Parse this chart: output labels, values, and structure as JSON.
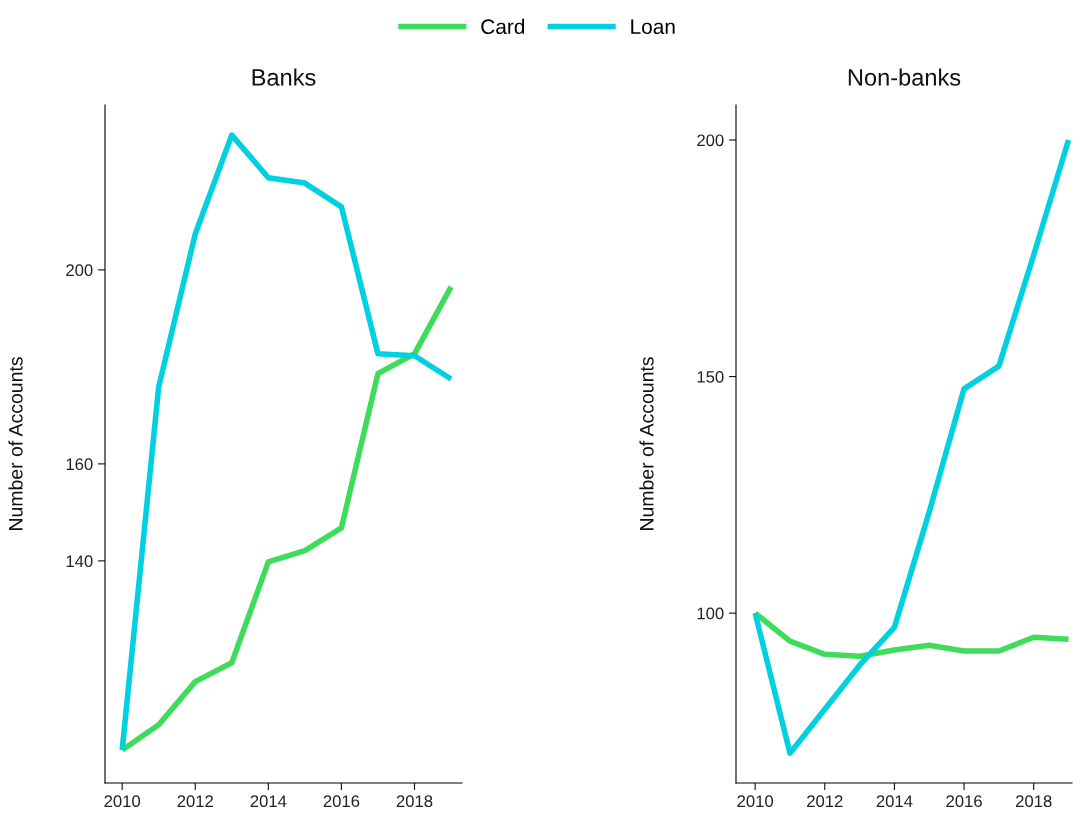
{
  "chart_data": [
    {
      "type": "line",
      "title": "Banks",
      "ylabel": "Number of Accounts",
      "legend": "top",
      "grid": false,
      "line_style": "solid",
      "marker": "none",
      "x": [
        2010,
        2011,
        2012,
        2013,
        2014,
        2015,
        2016,
        2017,
        2018,
        2019
      ],
      "xlim": [
        2009.53,
        2019.3
      ],
      "xticks": [
        2010,
        2012,
        2014,
        2016,
        2018
      ],
      "ylim": [
        94.2,
        234
      ],
      "yticks": [
        140,
        160,
        200
      ],
      "series": [
        {
          "name": "Card",
          "color": "#3ddc5a",
          "values": [
            101.0,
            106.2,
            115.1,
            119.0,
            139.8,
            142.1,
            146.8,
            178.6,
            182.7,
            196.5
          ]
        },
        {
          "name": "Loan",
          "color": "#00d0e0",
          "values": [
            101.0,
            175.9,
            207.4,
            227.8,
            219.0,
            217.9,
            213.0,
            182.7,
            182.3,
            177.5
          ]
        }
      ]
    },
    {
      "type": "line",
      "title": "Non-banks",
      "ylabel": "Number of Accounts",
      "legend": "top",
      "grid": false,
      "line_style": "solid",
      "marker": "none",
      "x": [
        2010,
        2011,
        2012,
        2013,
        2014,
        2015,
        2016,
        2017,
        2018,
        2019
      ],
      "xlim": [
        2009.45,
        2019.1
      ],
      "xticks": [
        2010,
        2012,
        2014,
        2016,
        2018
      ],
      "ylim": [
        64.1,
        207.4
      ],
      "yticks": [
        100,
        150,
        200
      ],
      "series": [
        {
          "color": "#3ddc5a",
          "values": [
            100,
            94.1,
            91.3,
            90.9,
            92.2,
            93.2,
            92.0,
            92.0,
            94.9,
            94.5
          ]
        },
        {
          "color": "#00d0e0",
          "values": [
            100,
            70.4,
            79.7,
            89.0,
            97.0,
            121.4,
            147.4,
            152.2,
            175.7,
            200
          ]
        }
      ]
    }
  ]
}
